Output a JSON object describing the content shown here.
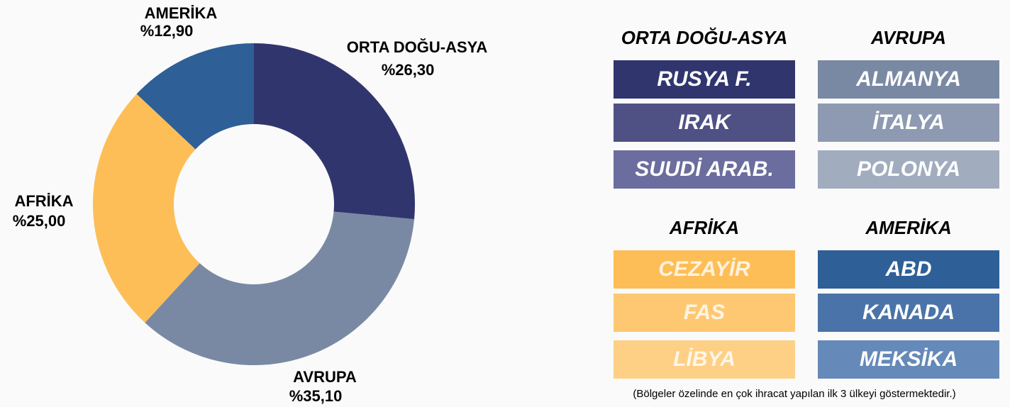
{
  "chart_data": {
    "type": "pie",
    "donut": true,
    "categories": [
      "ORTA DOĞU-ASYA",
      "AVRUPA",
      "AFRİKA",
      "AMERİKA"
    ],
    "values": [
      26.3,
      35.1,
      25.0,
      12.9
    ],
    "value_labels": [
      "%26,30",
      "%35,10",
      "%25,00",
      "%12,90"
    ],
    "colors": [
      "#31356e",
      "#7a89a3",
      "#fdbe57",
      "#2e5f97"
    ]
  },
  "panel": {
    "groups": [
      {
        "title": "ORTA DOĞU-ASYA",
        "items": [
          {
            "name": "RUSYA F.",
            "color": "#31356e"
          },
          {
            "name": "IRAK",
            "color": "#4f5185"
          },
          {
            "name": "SUUDİ ARAB.",
            "color": "#6b6d9e"
          }
        ]
      },
      {
        "title": "AVRUPA",
        "items": [
          {
            "name": "ALMANYA",
            "color": "#7a89a3"
          },
          {
            "name": "İTALYA",
            "color": "#8d9ab1"
          },
          {
            "name": "POLONYA",
            "color": "#a1acbf"
          }
        ]
      },
      {
        "title": "AFRİKA",
        "items": [
          {
            "name": "CEZAYİR",
            "color": "#fdbe57"
          },
          {
            "name": "FAS",
            "color": "#fec872"
          },
          {
            "name": "LİBYA",
            "color": "#fed086"
          }
        ]
      },
      {
        "title": "AMERİKA",
        "items": [
          {
            "name": "ABD",
            "color": "#2e5f97"
          },
          {
            "name": "KANADA",
            "color": "#4a74a9"
          },
          {
            "name": "MEKSİKA",
            "color": "#6589b8"
          }
        ]
      }
    ],
    "note": "(Bölgeler özelinde en çok ihracat yapılan ilk 3 ülkeyi göstermektedir.)"
  }
}
